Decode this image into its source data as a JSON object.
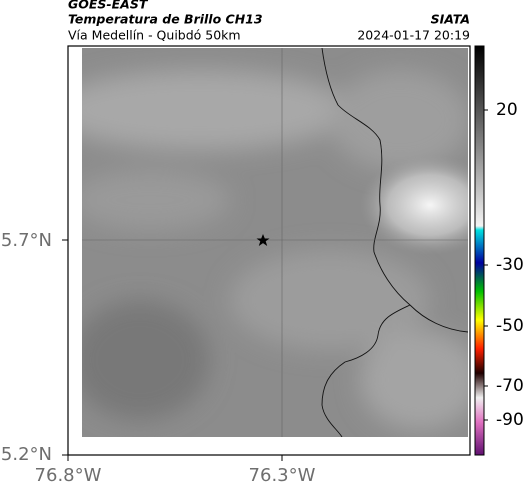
{
  "header": {
    "title": "GOES-EAST",
    "subtitle": "Temperatura de Brillo CH13",
    "region": "Vía Medellín - Quibdó 50km",
    "source": "SIATA",
    "timestamp": "2024-01-17 20:19"
  },
  "map": {
    "lat_labels": [
      "5.7°N",
      "5.2°N"
    ],
    "lon_labels": [
      "76.8°W",
      "76.3°W"
    ]
  },
  "colorbar": {
    "labels": [
      "20",
      "-30",
      "-50",
      "-70",
      "-90"
    ]
  }
}
